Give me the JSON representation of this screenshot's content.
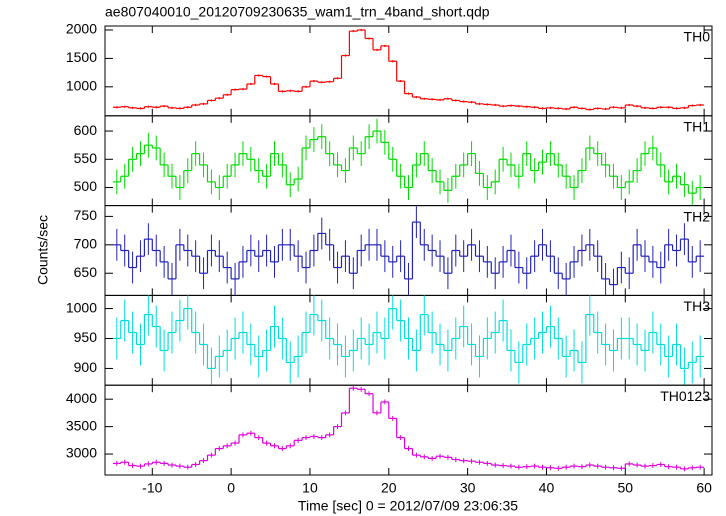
{
  "chart_data": {
    "type": "histogram",
    "title": "ae807040010_20120709230635_wam1_trn_4band_short.qdp",
    "x_label": "Time [sec] 0 = 2012/07/09 23:06:35",
    "y_label": "Counts/sec",
    "xlim": [
      -16,
      61
    ],
    "xticks": [
      -10,
      0,
      10,
      20,
      30,
      40,
      50,
      60
    ],
    "bins": [
      -15,
      -14,
      -13,
      -12,
      -11,
      -10,
      -9,
      -8,
      -7,
      -6,
      -5,
      -4,
      -3,
      -2,
      -1,
      0,
      1,
      2,
      3,
      4,
      5,
      6,
      7,
      8,
      9,
      10,
      11,
      12,
      13,
      14,
      15,
      16,
      17,
      18,
      19,
      20,
      21,
      22,
      23,
      24,
      25,
      26,
      27,
      28,
      29,
      30,
      31,
      32,
      33,
      34,
      35,
      36,
      37,
      38,
      39,
      40,
      41,
      42,
      43,
      44,
      45,
      46,
      47,
      48,
      49,
      50,
      51,
      52,
      53,
      54,
      55,
      56,
      57,
      58,
      59,
      60
    ],
    "series": [
      {
        "name": "TH0",
        "color": "#ff0000",
        "ylim": [
          490,
          2070
        ],
        "yticks": [
          1000,
          1500,
          2000
        ],
        "error": 20,
        "values": [
          640,
          650,
          630,
          620,
          650,
          640,
          660,
          630,
          620,
          640,
          680,
          700,
          760,
          800,
          860,
          950,
          960,
          1050,
          1200,
          1180,
          1050,
          920,
          930,
          920,
          1000,
          1100,
          1080,
          1090,
          1150,
          1550,
          1980,
          2000,
          1850,
          1650,
          1720,
          1450,
          1100,
          880,
          820,
          790,
          780,
          770,
          790,
          760,
          740,
          730,
          700,
          690,
          680,
          660,
          670,
          660,
          650,
          640,
          620,
          630,
          620,
          610,
          640,
          620,
          600,
          620,
          610,
          640,
          630,
          680,
          660,
          630,
          620,
          640,
          640,
          620,
          630,
          670,
          680
        ]
      },
      {
        "name": "TH1",
        "color": "#00dd00",
        "ylim": [
          468,
          627
        ],
        "yticks": [
          500,
          550,
          600
        ],
        "error": 22,
        "values": [
          510,
          520,
          550,
          560,
          575,
          570,
          540,
          520,
          500,
          530,
          560,
          540,
          510,
          500,
          520,
          540,
          560,
          550,
          530,
          520,
          560,
          540,
          505,
          515,
          570,
          585,
          590,
          560,
          540,
          530,
          570,
          560,
          590,
          600,
          580,
          550,
          520,
          500,
          540,
          560,
          530,
          510,
          495,
          520,
          540,
          560,
          525,
          500,
          510,
          550,
          540,
          520,
          560,
          530,
          545,
          560,
          540,
          520,
          500,
          530,
          570,
          560,
          540,
          520,
          500,
          510,
          530,
          560,
          570,
          540,
          510,
          520,
          505,
          490,
          500
        ]
      },
      {
        "name": "TH2",
        "color": "#2222bb",
        "ylim": [
          611,
          769
        ],
        "yticks": [
          650,
          700,
          750
        ],
        "error": 28,
        "values": [
          700,
          690,
          660,
          680,
          710,
          690,
          670,
          640,
          700,
          690,
          680,
          650,
          690,
          680,
          660,
          640,
          670,
          690,
          680,
          690,
          670,
          700,
          700,
          680,
          660,
          690,
          720,
          700,
          660,
          680,
          650,
          690,
          700,
          700,
          680,
          670,
          680,
          640,
          740,
          700,
          690,
          680,
          650,
          690,
          680,
          700,
          680,
          670,
          650,
          670,
          690,
          660,
          650,
          680,
          700,
          680,
          650,
          640,
          670,
          690,
          700,
          680,
          640,
          630,
          660,
          650,
          700,
          680,
          670,
          660,
          700,
          690,
          710,
          670,
          680
        ]
      },
      {
        "name": "TH3",
        "color": "#00dddd",
        "ylim": [
          872,
          1022
        ],
        "yticks": [
          900,
          950,
          1000
        ],
        "error": 35,
        "values": [
          950,
          980,
          960,
          940,
          990,
          970,
          930,
          960,
          980,
          1000,
          960,
          940,
          900,
          920,
          930,
          950,
          960,
          940,
          920,
          930,
          970,
          950,
          910,
          920,
          960,
          990,
          980,
          950,
          940,
          920,
          930,
          950,
          940,
          960,
          950,
          1000,
          980,
          950,
          930,
          990,
          960,
          940,
          930,
          950,
          970,
          940,
          920,
          950,
          960,
          980,
          930,
          910,
          940,
          950,
          960,
          970,
          950,
          920,
          930,
          910,
          990,
          960,
          940,
          930,
          950,
          950,
          940,
          930,
          960,
          940,
          920,
          940,
          900,
          910,
          920
        ]
      },
      {
        "name": "TH0123",
        "color": "#dd00dd",
        "ylim": [
          2618,
          4255
        ],
        "yticks": [
          3000,
          3500,
          4000
        ],
        "error": 45,
        "values": [
          2830,
          2850,
          2790,
          2780,
          2820,
          2850,
          2830,
          2800,
          2780,
          2760,
          2810,
          2880,
          2980,
          3100,
          3150,
          3200,
          3350,
          3380,
          3300,
          3200,
          3150,
          3100,
          3150,
          3250,
          3300,
          3320,
          3300,
          3350,
          3500,
          3750,
          4200,
          4180,
          4100,
          3750,
          3950,
          3650,
          3300,
          3100,
          2980,
          2950,
          2920,
          2960,
          2940,
          2900,
          2880,
          2870,
          2850,
          2830,
          2800,
          2790,
          2780,
          2760,
          2770,
          2780,
          2760,
          2750,
          2740,
          2760,
          2780,
          2770,
          2800,
          2780,
          2760,
          2750,
          2740,
          2820,
          2800,
          2780,
          2790,
          2810,
          2770,
          2760,
          2730,
          2750,
          2760
        ]
      }
    ]
  }
}
